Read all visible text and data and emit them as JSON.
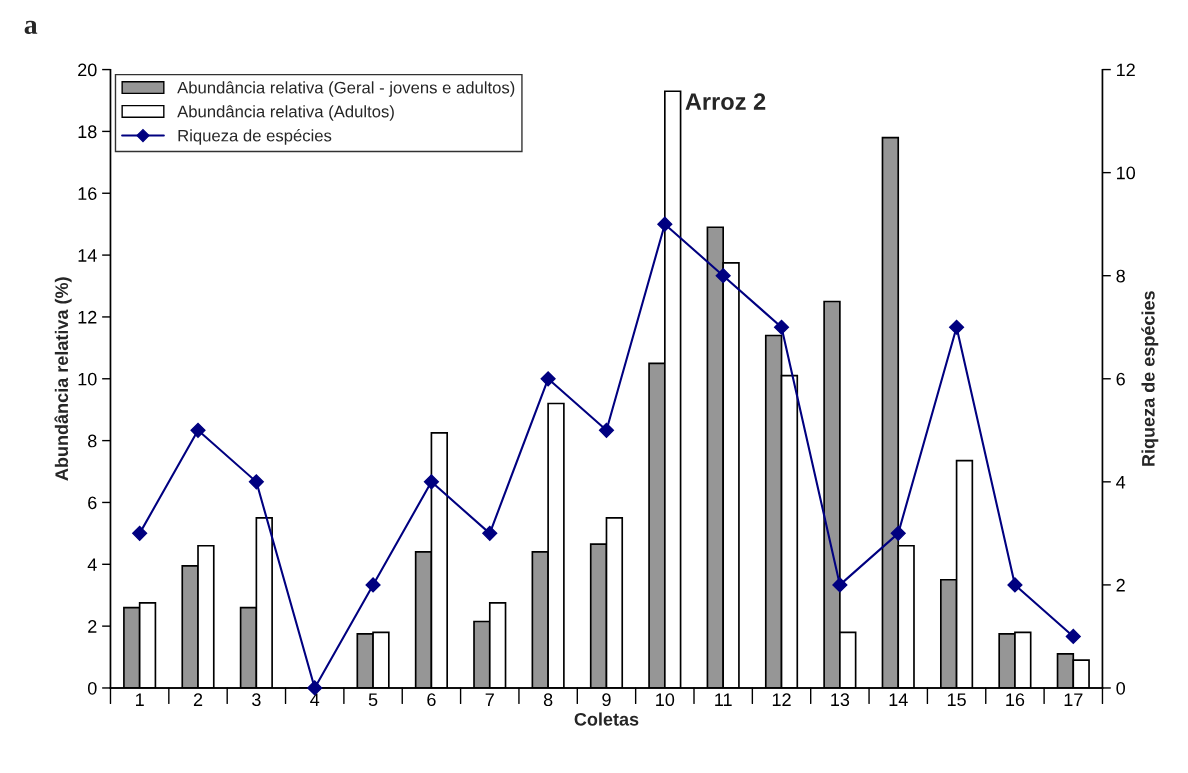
{
  "chart_data": {
    "type": "bar",
    "title": "Arroz 2",
    "xlabel": "Coletas",
    "ylabel": "Abundância relativa (%)",
    "y2label": "Riqueza de espécies",
    "annotations": [
      "a"
    ],
    "categories": [
      "1",
      "2",
      "3",
      "4",
      "5",
      "6",
      "7",
      "8",
      "9",
      "10",
      "11",
      "12",
      "13",
      "14",
      "15",
      "16",
      "17"
    ],
    "series": [
      {
        "name": "Abundância relativa (Geral - jovens e adultos)",
        "color": "#969696",
        "values": [
          2.6,
          3.95,
          2.6,
          0,
          1.75,
          4.4,
          2.15,
          4.4,
          4.65,
          10.5,
          14.9,
          11.4,
          12.5,
          17.8,
          3.5,
          1.75,
          1.1
        ]
      },
      {
        "name": "Abundância relativa (Adultos)",
        "color": "#ffffff",
        "values": [
          2.75,
          4.6,
          5.5,
          0,
          1.8,
          8.25,
          2.75,
          9.2,
          5.5,
          19.3,
          13.75,
          10.1,
          1.8,
          4.6,
          7.35,
          1.8,
          0.9
        ]
      },
      {
        "name": "Riqueza de espécies",
        "type": "line",
        "axis": "y2",
        "color": "#000080",
        "marker": "diamond",
        "values": [
          3,
          5,
          4,
          0,
          2,
          4,
          3,
          6,
          5,
          9,
          8,
          7,
          2,
          3,
          7,
          2,
          1
        ]
      }
    ],
    "ylim": [
      0,
      20
    ],
    "yticks": [
      0,
      2,
      4,
      6,
      8,
      10,
      12,
      14,
      16,
      18,
      20
    ],
    "y2lim": [
      0,
      12
    ],
    "y2ticks": [
      0,
      2,
      4,
      6,
      8,
      10,
      12
    ],
    "legend": "top left",
    "grid": false
  }
}
